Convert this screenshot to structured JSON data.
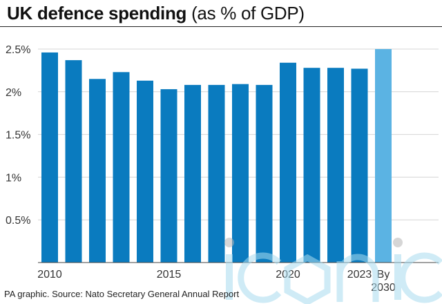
{
  "title_main": "UK defence spending",
  "title_sub": "(as % of GDP)",
  "source": "PA graphic. Source: Nato Secretary General Annual Report",
  "watermark": "iconic",
  "colors": {
    "bar": "#0a7bbf",
    "bar_projected": "#5bb3e3",
    "grid": "#d4d4d4",
    "axis": "#444444"
  },
  "chart_data": {
    "type": "bar",
    "title": "UK defence spending (as % of GDP)",
    "categories": [
      "2010",
      "2011",
      "2012",
      "2013",
      "2014",
      "2015",
      "2016",
      "2017",
      "2018",
      "2019",
      "2020",
      "2021",
      "2022",
      "2023",
      "By 2030"
    ],
    "values": [
      2.46,
      2.37,
      2.15,
      2.23,
      2.13,
      2.03,
      2.08,
      2.08,
      2.09,
      2.08,
      2.34,
      2.28,
      2.28,
      2.27,
      2.5
    ],
    "projected": [
      false,
      false,
      false,
      false,
      false,
      false,
      false,
      false,
      false,
      false,
      false,
      false,
      false,
      false,
      true
    ],
    "x_tick_labels": [
      {
        "index": 0,
        "lines": [
          "2010"
        ]
      },
      {
        "index": 5,
        "lines": [
          "2015"
        ]
      },
      {
        "index": 10,
        "lines": [
          "2020"
        ]
      },
      {
        "index": 13,
        "lines": [
          "2023"
        ]
      },
      {
        "index": 14,
        "lines": [
          "By",
          "2030"
        ]
      }
    ],
    "y_ticks": [
      0.5,
      1,
      1.5,
      2,
      2.5
    ],
    "y_tick_labels": [
      "0.5%",
      "1%",
      "1.5%",
      "2%",
      "2.5%"
    ],
    "ylim": [
      0,
      2.5
    ],
    "grid": true,
    "xlabel": "",
    "ylabel": ""
  }
}
